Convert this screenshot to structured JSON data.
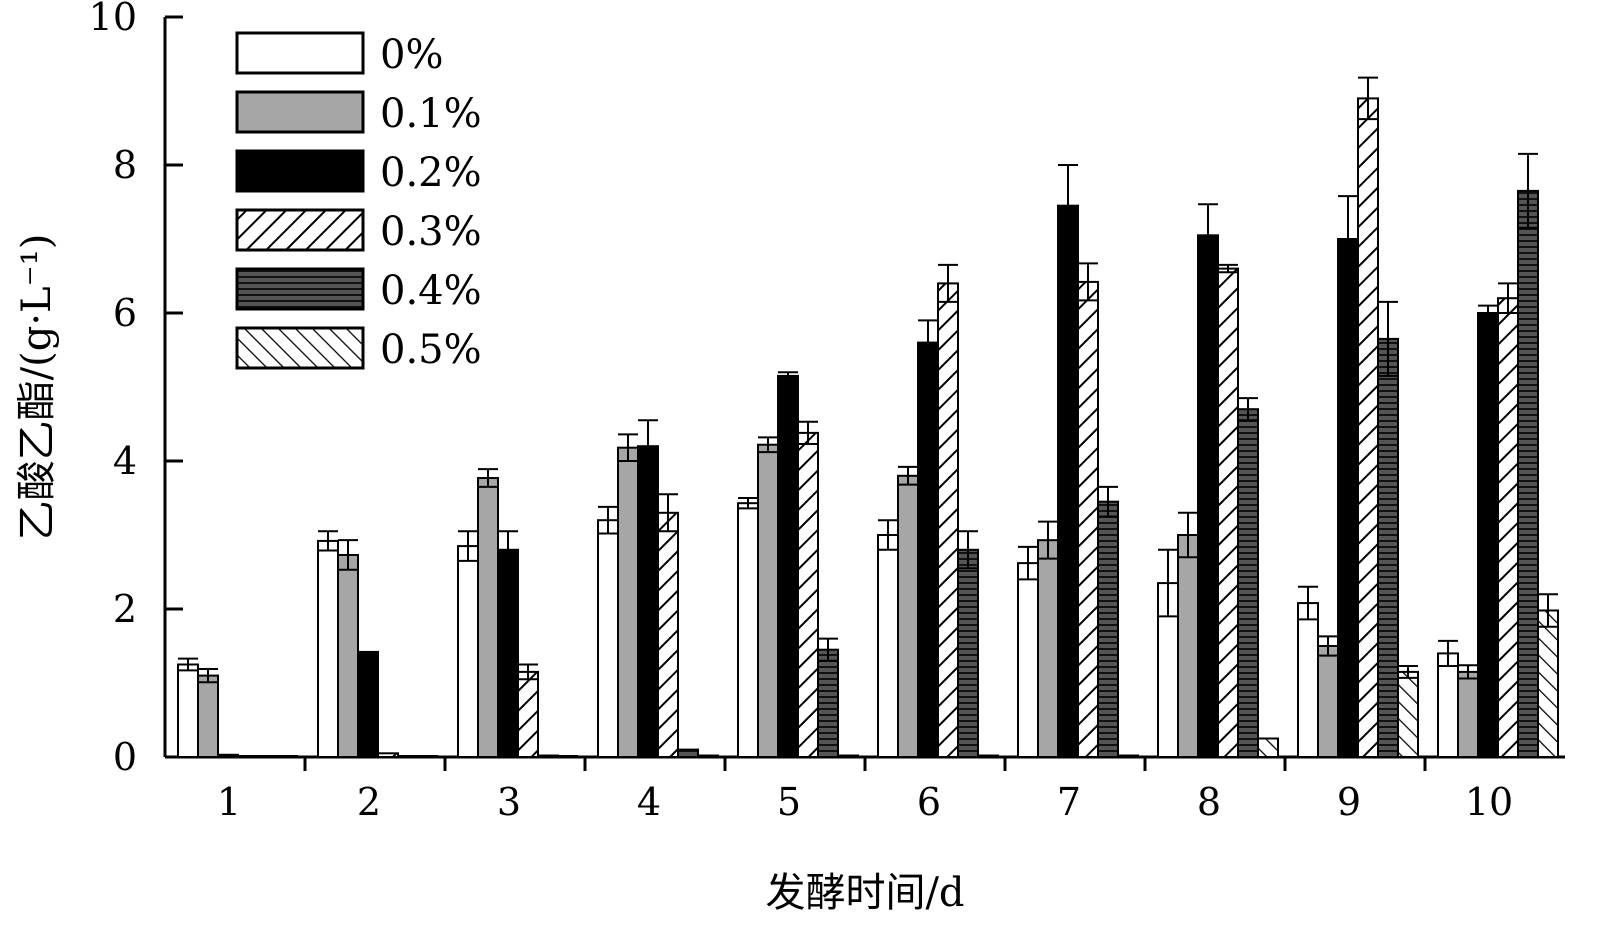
{
  "chart_data": {
    "type": "bar",
    "xlabel": "发酵时间/d",
    "ylabel": "乙酸乙酯/(g·L⁻¹)",
    "categories": [
      "1",
      "2",
      "3",
      "4",
      "5",
      "6",
      "7",
      "8",
      "9",
      "10"
    ],
    "ylim": [
      0,
      10
    ],
    "yticks": [
      "0",
      "2",
      "4",
      "6",
      "8",
      "10"
    ],
    "grid": false,
    "legend_position": "top-left",
    "series": [
      {
        "name": "0%",
        "pattern": "white",
        "values": [
          1.25,
          2.92,
          2.85,
          3.2,
          3.43,
          3.0,
          2.62,
          2.35,
          2.08,
          1.4
        ],
        "errors": [
          0.08,
          0.13,
          0.2,
          0.18,
          0.07,
          0.2,
          0.22,
          0.45,
          0.22,
          0.17
        ]
      },
      {
        "name": "0.1%",
        "pattern": "gray",
        "values": [
          1.1,
          2.73,
          3.77,
          4.18,
          4.22,
          3.8,
          2.93,
          3.0,
          1.5,
          1.15
        ],
        "errors": [
          0.09,
          0.2,
          0.12,
          0.18,
          0.1,
          0.12,
          0.25,
          0.3,
          0.13,
          0.09
        ]
      },
      {
        "name": "0.2%",
        "pattern": "black",
        "values": [
          0.03,
          1.42,
          2.8,
          4.2,
          5.15,
          5.6,
          7.45,
          7.05,
          7.0,
          6.0
        ],
        "errors": [
          0.0,
          0.0,
          0.25,
          0.35,
          0.05,
          0.3,
          0.55,
          0.42,
          0.58,
          0.1
        ]
      },
      {
        "name": "0.3%",
        "pattern": "diag-right",
        "values": [
          0.0,
          0.05,
          1.15,
          3.3,
          4.38,
          6.4,
          6.42,
          6.6,
          8.9,
          6.2
        ],
        "errors": [
          0.0,
          0.0,
          0.1,
          0.25,
          0.15,
          0.25,
          0.25,
          0.05,
          0.28,
          0.2
        ]
      },
      {
        "name": "0.4%",
        "pattern": "horizontal",
        "values": [
          0.0,
          0.0,
          0.02,
          0.1,
          1.45,
          2.8,
          3.45,
          4.7,
          5.65,
          7.65
        ],
        "errors": [
          0.0,
          0.0,
          0.0,
          0.0,
          0.15,
          0.25,
          0.2,
          0.15,
          0.5,
          0.5
        ]
      },
      {
        "name": "0.5%",
        "pattern": "diag-left",
        "values": [
          0.0,
          0.0,
          0.0,
          0.02,
          0.02,
          0.02,
          0.02,
          0.25,
          1.15,
          1.98
        ],
        "errors": [
          0.0,
          0.0,
          0.0,
          0.0,
          0.0,
          0.0,
          0.0,
          0.0,
          0.08,
          0.22
        ]
      }
    ]
  }
}
